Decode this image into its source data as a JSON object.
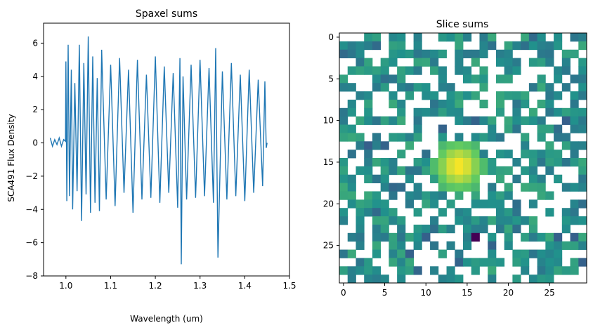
{
  "chart_data": [
    {
      "type": "line",
      "title": "Spaxel sums",
      "xlabel": "Wavelength (um)",
      "ylabel": "SCA491 Flux Density",
      "xlim": [
        0.95,
        1.5
      ],
      "ylim": [
        -8,
        7.2
      ],
      "xticks": [
        1.0,
        1.1,
        1.2,
        1.3,
        1.4,
        1.5
      ],
      "xtick_labels": [
        "1.0",
        "1.1",
        "1.2",
        "1.3",
        "1.4",
        "1.5"
      ],
      "yticks": [
        -8,
        -6,
        -4,
        -2,
        0,
        2,
        4,
        6
      ],
      "ytick_labels": [
        "−8",
        "−6",
        "−4",
        "−2",
        "0",
        "2",
        "4",
        "6"
      ],
      "color": "#1f77b4",
      "series": [
        {
          "x": [
            0.965,
            0.97,
            0.975,
            0.98,
            0.985,
            0.99,
            0.995,
            0.999,
            1.0,
            1.002,
            1.005,
            1.008,
            1.012,
            1.015,
            1.02,
            1.025,
            1.03,
            1.035,
            1.04,
            1.045,
            1.05,
            1.055,
            1.06,
            1.065,
            1.07,
            1.075,
            1.08,
            1.09,
            1.1,
            1.11,
            1.12,
            1.13,
            1.14,
            1.15,
            1.16,
            1.17,
            1.18,
            1.19,
            1.2,
            1.21,
            1.22,
            1.23,
            1.24,
            1.25,
            1.255,
            1.258,
            1.262,
            1.27,
            1.28,
            1.29,
            1.3,
            1.31,
            1.32,
            1.33,
            1.335,
            1.34,
            1.35,
            1.36,
            1.37,
            1.38,
            1.39,
            1.4,
            1.41,
            1.42,
            1.43,
            1.44,
            1.445,
            1.448,
            1.45
          ],
          "y": [
            0.3,
            -0.2,
            0.2,
            -0.1,
            0.3,
            -0.2,
            0.2,
            0.1,
            4.9,
            -3.5,
            5.9,
            -3.2,
            4.4,
            -4.0,
            3.6,
            -2.9,
            5.9,
            -4.7,
            4.8,
            -3.1,
            6.4,
            -4.2,
            5.2,
            -3.6,
            3.9,
            -4.1,
            5.6,
            -3.4,
            4.7,
            -3.8,
            5.1,
            -3.0,
            4.4,
            -4.2,
            5.0,
            -3.4,
            4.1,
            -3.3,
            5.2,
            -3.6,
            4.6,
            -3.0,
            4.2,
            -3.9,
            5.1,
            -7.3,
            4.0,
            -3.4,
            4.7,
            -3.3,
            5.0,
            -3.2,
            4.5,
            -3.6,
            5.7,
            -6.9,
            4.3,
            -3.4,
            4.8,
            -3.2,
            4.1,
            -3.5,
            4.4,
            -3.0,
            3.8,
            -2.6,
            3.7,
            -0.3,
            0.0
          ]
        }
      ]
    },
    {
      "type": "heatmap",
      "title": "Slice sums",
      "xlim": [
        -0.5,
        29.5
      ],
      "ylim": [
        29.5,
        -0.5
      ],
      "xticks": [
        0,
        5,
        10,
        15,
        20,
        25
      ],
      "yticks": [
        0,
        5,
        10,
        15,
        20,
        25
      ],
      "colormap": "viridis",
      "value_range": [
        0,
        1
      ],
      "grid_size": [
        30,
        30
      ],
      "missing_fraction": 0.45,
      "peak": {
        "row": 15,
        "col": 14,
        "value": 1.0
      },
      "minimum": {
        "row": 24,
        "col": 16,
        "value": 0.0
      }
    }
  ]
}
